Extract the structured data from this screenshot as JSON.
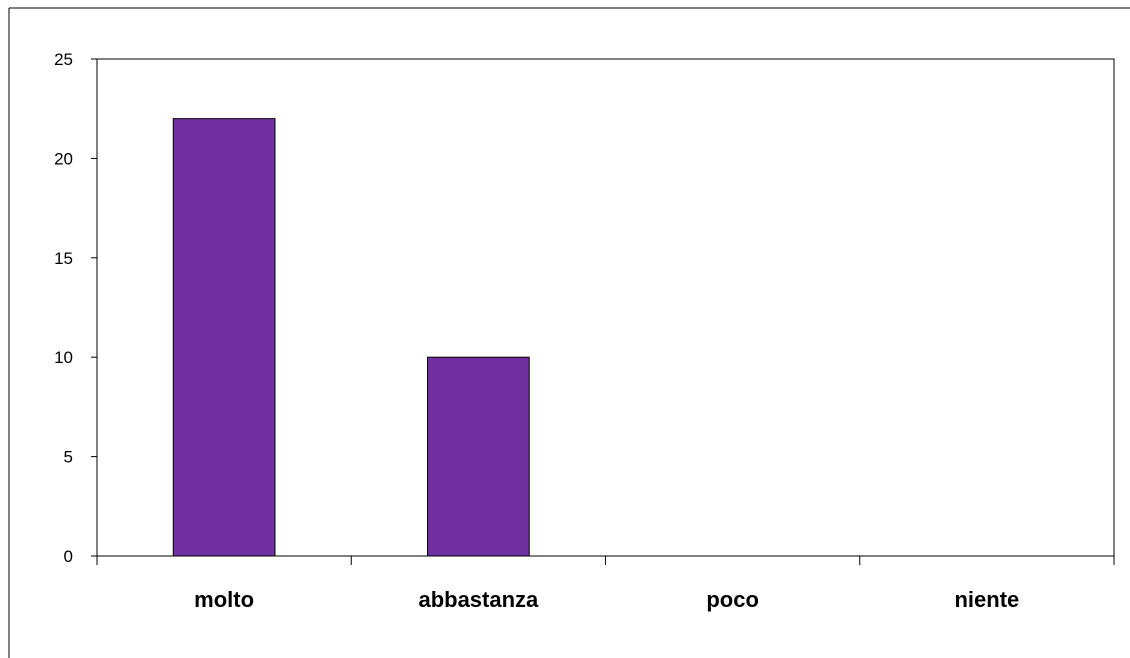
{
  "chart_data": {
    "type": "bar",
    "categories": [
      "molto",
      "abbastanza",
      "poco",
      "niente"
    ],
    "values": [
      22,
      10,
      0,
      0
    ],
    "ylim": [
      0,
      25
    ],
    "yticks": [
      0,
      5,
      10,
      15,
      20,
      25
    ],
    "ytick_labels": [
      "0",
      "5",
      "10",
      "15",
      "20",
      "25"
    ],
    "title": "",
    "xlabel": "",
    "ylabel": "",
    "grid": false,
    "legend": "none",
    "bar_color": "#7030A0",
    "bar_edge_color": "#000000"
  }
}
